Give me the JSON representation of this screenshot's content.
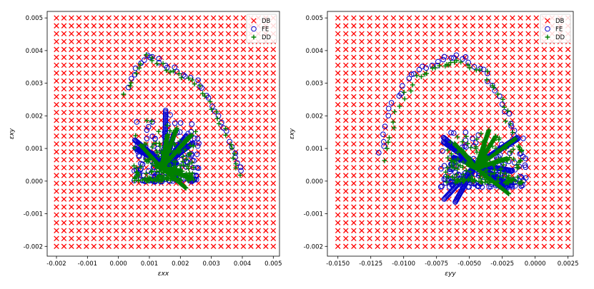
{
  "chart_data": [
    {
      "type": "scatter",
      "xlabel": "εxx",
      "ylabel": "εxy",
      "xlim": [
        -0.0023,
        0.0052
      ],
      "ylim": [
        -0.0023,
        0.0052
      ],
      "x_ticks": [
        "-0.002",
        "-0.001",
        "0.000",
        "0.001",
        "0.002",
        "0.003",
        "0.004",
        "0.005"
      ],
      "y_ticks": [
        "-0.002",
        "-0.001",
        "0.000",
        "0.001",
        "0.002",
        "0.003",
        "0.004",
        "0.005"
      ],
      "legend": {
        "placement": "top-right",
        "entries": [
          "DB",
          "FE",
          "DD"
        ]
      },
      "series": [
        {
          "name": "DB",
          "marker": "x",
          "color": "#ff0000",
          "grid": {
            "x_start": -0.002,
            "x_end": 0.005,
            "y_start": -0.002,
            "y_end": 0.005,
            "n": 30
          }
        },
        {
          "name": "FE",
          "marker": "circle-open",
          "color": "#0000cc",
          "arc": {
            "x": [
              0.0003,
              0.0009,
              0.0016,
              0.0025,
              0.0031,
              0.0037,
              0.004
            ],
            "y": [
              0.0029,
              0.0039,
              0.0035,
              0.0031,
              0.0022,
              0.0011,
              0.0001
            ]
          },
          "cluster": {
            "x_range": [
              0.0005,
              0.0026
            ],
            "y_range": [
              -0.0006,
              0.0023
            ],
            "center": [
              0.0015,
              0.0005
            ]
          }
        },
        {
          "name": "DD",
          "marker": "plus",
          "color": "#008000",
          "arc": {
            "x": [
              0.0002,
              0.0009,
              0.0016,
              0.0025,
              0.0031,
              0.0037,
              0.0039
            ],
            "y": [
              0.0027,
              0.0038,
              0.0034,
              0.003,
              0.0021,
              0.001,
              0.0001
            ]
          },
          "cluster": {
            "x_range": [
              0.0005,
              0.0025
            ],
            "y_range": [
              -0.0005,
              0.002
            ],
            "center": [
              0.0014,
              0.0004
            ]
          }
        }
      ]
    },
    {
      "type": "scatter",
      "xlabel": "εyy",
      "ylabel": "εxy",
      "xlim": [
        -0.0158,
        0.0029
      ],
      "ylim": [
        -0.0023,
        0.0052
      ],
      "x_ticks": [
        "-0.0150",
        "-0.0125",
        "-0.0100",
        "-0.0075",
        "-0.0050",
        "-0.0025",
        "0.0000",
        "0.0025"
      ],
      "y_ticks": [
        "-0.002",
        "-0.001",
        "0.000",
        "0.001",
        "0.002",
        "0.003",
        "0.004",
        "0.005"
      ],
      "legend": {
        "placement": "top-right",
        "entries": [
          "DB",
          "FE",
          "DD"
        ]
      },
      "series": [
        {
          "name": "DB",
          "marker": "x",
          "color": "#ff0000",
          "grid": {
            "x_start": -0.015,
            "x_end": 0.0025,
            "y_start": -0.002,
            "y_end": 0.005,
            "n": 30
          }
        },
        {
          "name": "FE",
          "marker": "circle-open",
          "color": "#0000cc",
          "arc": {
            "x": [
              -0.0118,
              -0.011,
              -0.0095,
              -0.0075,
              -0.006,
              -0.004,
              -0.0025,
              -0.0013
            ],
            "y": [
              0.0008,
              0.0022,
              0.0033,
              0.0036,
              0.0039,
              0.0034,
              0.0024,
              0.0012
            ]
          },
          "cluster": {
            "x_range": [
              -0.0072,
              -0.0007
            ],
            "y_range": [
              -0.0007,
              0.0019
            ],
            "center": [
              -0.0045,
              0.0005
            ]
          }
        },
        {
          "name": "DD",
          "marker": "plus",
          "color": "#008000",
          "arc": {
            "x": [
              -0.0115,
              -0.0106,
              -0.009,
              -0.0072,
              -0.0058,
              -0.0038,
              -0.0024,
              -0.0014
            ],
            "y": [
              0.0007,
              0.0021,
              0.0032,
              0.0035,
              0.0037,
              0.0033,
              0.0023,
              0.0011
            ]
          },
          "cluster": {
            "x_range": [
              -0.0068,
              -0.001
            ],
            "y_range": [
              -0.0005,
              0.0017
            ],
            "center": [
              -0.0045,
              0.0004
            ]
          }
        }
      ]
    }
  ]
}
